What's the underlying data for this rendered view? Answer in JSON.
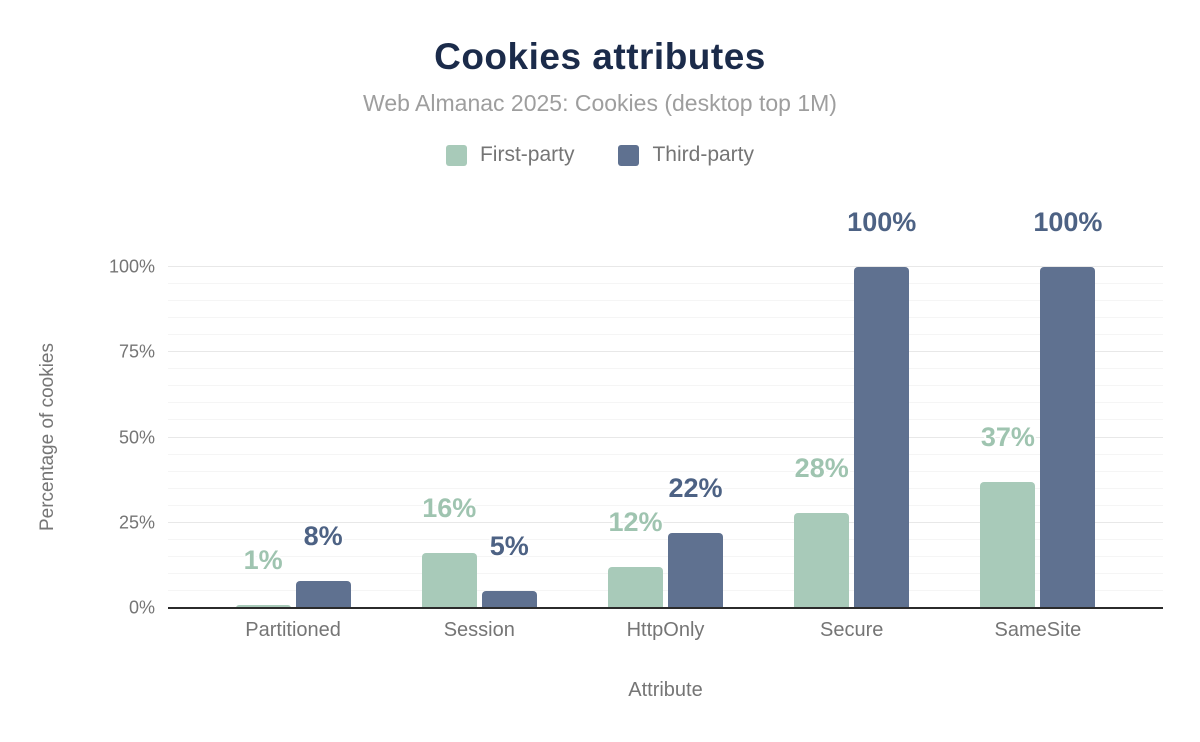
{
  "header": {
    "title": "Cookies attributes",
    "subtitle": "Web Almanac 2025: Cookies (desktop top 1M)"
  },
  "colors": {
    "first_party": "#a8cab9",
    "third_party": "#5f7190",
    "first_party_label": "#9fc4b0",
    "third_party_label": "#4d6284",
    "title": "#1b2b4a",
    "subtitle_text": "#9e9e9e",
    "axis_text": "#757575",
    "axis_line": "#2b2b2b",
    "grid_major": "#e8e8e8",
    "grid_minor": "#f5f5f5"
  },
  "chart_data": {
    "type": "bar",
    "title": "Cookies attributes",
    "subtitle": "Web Almanac 2025: Cookies (desktop top 1M)",
    "categories": [
      "Partitioned",
      "Session",
      "HttpOnly",
      "Secure",
      "SameSite"
    ],
    "series": [
      {
        "name": "First-party",
        "values": [
          1,
          16,
          12,
          28,
          37
        ],
        "labels": [
          "1%",
          "16%",
          "12%",
          "28%",
          "37%"
        ]
      },
      {
        "name": "Third-party",
        "values": [
          8,
          5,
          22,
          100,
          100
        ],
        "labels": [
          "8%",
          "5%",
          "22%",
          "100%",
          "100%"
        ]
      }
    ],
    "xlabel": "Attribute",
    "ylabel": "Percentage of cookies",
    "ylim": [
      0,
      100
    ],
    "yticks": [
      0,
      25,
      50,
      75,
      100
    ],
    "ytick_labels": [
      "0%",
      "25%",
      "50%",
      "75%",
      "100%"
    ],
    "minor_grid_step": 5,
    "grid": true,
    "legend_position": "top"
  }
}
